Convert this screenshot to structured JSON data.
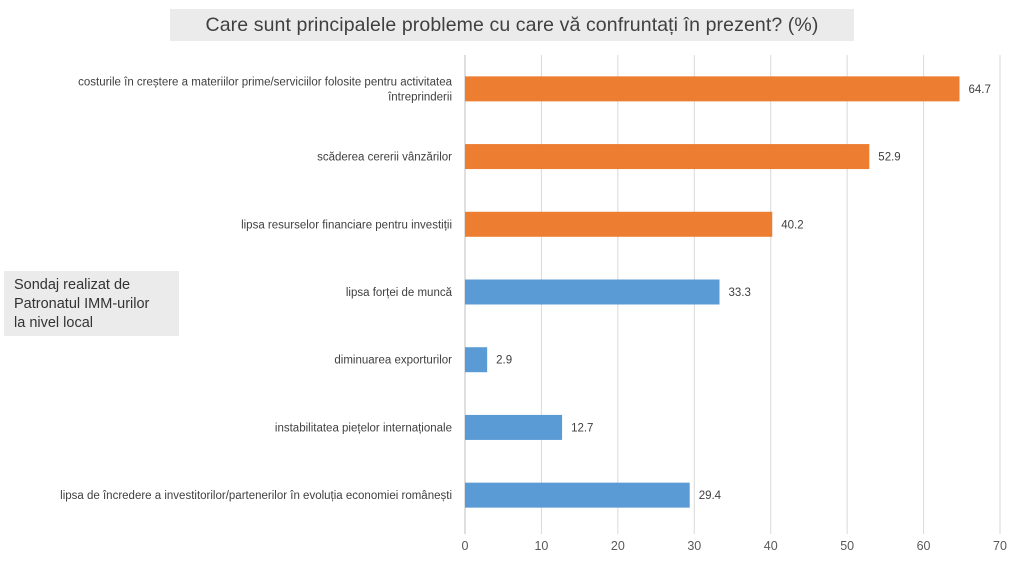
{
  "title": "Care sunt principalele probleme cu care vă confruntați în prezent? (%)",
  "note": [
    "Sondaj realizat de",
    "Patronatul IMM-urilor",
    "la nivel local"
  ],
  "colors": {
    "highlight": "#ed7d31",
    "normal": "#5b9bd5",
    "grid": "#d9d9d9"
  },
  "chart_data": {
    "type": "bar",
    "orientation": "horizontal",
    "title": "Care sunt principalele probleme cu care vă confruntați în prezent? (%)",
    "categories": [
      [
        "costurile în creștere a materiilor prime/serviciilor folosite pentru activitatea",
        "întreprinderii"
      ],
      [
        "scăderea cererii vânzărilor"
      ],
      [
        "lipsa resurselor financiare pentru investiții"
      ],
      [
        "lipsa forței de muncă"
      ],
      [
        "diminuarea exporturilor"
      ],
      [
        "instabilitatea piețelor internaționale"
      ],
      [
        "lipsa de încredere a investitorilor/partenerilor în evoluția economiei românești"
      ]
    ],
    "values": [
      64.7,
      52.9,
      40.2,
      33.3,
      2.9,
      12.7,
      29.4
    ],
    "value_labels": [
      "64.7",
      "52.9",
      "40.2",
      "33.3",
      "2.9",
      "12.7",
      "29.4"
    ],
    "bar_colors": [
      "highlight",
      "highlight",
      "highlight",
      "normal",
      "normal",
      "normal",
      "normal"
    ],
    "xlim": [
      0,
      70
    ],
    "xticks": [
      0,
      10,
      20,
      30,
      40,
      50,
      60,
      70
    ],
    "grid": true,
    "legend": "none"
  }
}
